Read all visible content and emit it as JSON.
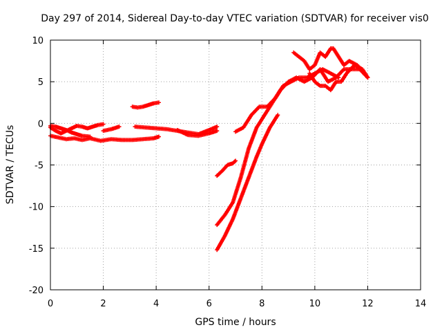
{
  "chart_data": {
    "type": "scatter",
    "title": "Day 297 of 2014, Sidereal Day-to-day VTEC variation (SDTVAR) for receiver vis0",
    "xlabel": "GPS time / hours",
    "ylabel": "SDTVAR / TECUs",
    "xlim": [
      0,
      14
    ],
    "ylim": [
      -20,
      10
    ],
    "x_ticks": [
      "0",
      "2",
      "4",
      "6",
      "8",
      "10",
      "12",
      "14"
    ],
    "y_ticks": [
      "10",
      "5",
      "0",
      "-5",
      "-10",
      "-15",
      "-20"
    ],
    "grid": true,
    "color": "#ff0000",
    "series": [
      {
        "x": [
          0.0,
          0.3,
          0.6,
          0.9,
          1.2,
          1.5,
          1.9,
          2.3,
          2.7,
          3.1,
          3.5,
          3.9,
          4.1
        ],
        "y": [
          -1.5,
          -1.7,
          -1.9,
          -1.8,
          -2.0,
          -1.8,
          -2.1,
          -1.9,
          -2.0,
          -2.0,
          -1.9,
          -1.8,
          -1.6
        ]
      },
      {
        "x": [
          0.0,
          0.2,
          0.4,
          0.6,
          0.8,
          1.0,
          1.2,
          1.4,
          1.6,
          1.8,
          2.0
        ],
        "y": [
          -0.5,
          -0.9,
          -1.2,
          -0.9,
          -0.6,
          -0.3,
          -0.4,
          -0.6,
          -0.4,
          -0.2,
          -0.1
        ]
      },
      {
        "x": [
          0.0,
          0.2,
          0.4,
          0.6,
          0.8,
          1.0,
          1.2,
          1.5
        ],
        "y": [
          -0.3,
          -0.4,
          -0.6,
          -0.8,
          -1.1,
          -1.3,
          -1.5,
          -1.6
        ]
      },
      {
        "x": [
          2.0,
          2.3,
          2.6
        ],
        "y": [
          -0.9,
          -0.7,
          -0.4
        ]
      },
      {
        "x": [
          3.1,
          3.3,
          3.5,
          3.7,
          3.9,
          4.1
        ],
        "y": [
          2.0,
          1.9,
          2.0,
          2.2,
          2.4,
          2.5
        ]
      },
      {
        "x": [
          3.2,
          3.6,
          4.0,
          4.4,
          4.8,
          5.2,
          5.6,
          6.0,
          6.3
        ],
        "y": [
          -0.4,
          -0.5,
          -0.6,
          -0.7,
          -0.9,
          -1.1,
          -1.3,
          -0.8,
          -0.4
        ]
      },
      {
        "x": [
          4.8,
          5.2,
          5.6,
          6.0,
          6.3
        ],
        "y": [
          -0.8,
          -1.4,
          -1.5,
          -1.2,
          -0.9
        ]
      },
      {
        "x": [
          6.3,
          6.5,
          6.7,
          6.9,
          7.0
        ],
        "y": [
          -6.3,
          -5.7,
          -5.0,
          -4.8,
          -4.5
        ]
      },
      {
        "x": [
          6.3,
          6.6,
          6.9,
          7.2,
          7.5,
          7.8,
          8.0,
          8.3,
          8.6
        ],
        "y": [
          -15.2,
          -13.5,
          -11.5,
          -9.0,
          -6.5,
          -4.0,
          -2.5,
          -0.5,
          1.0
        ]
      },
      {
        "x": [
          6.3,
          6.6,
          6.9,
          7.2,
          7.5,
          7.8,
          8.1,
          8.4,
          8.7,
          9.0,
          9.3,
          9.6,
          9.9,
          10.2,
          10.5,
          10.8,
          11.1,
          11.4,
          11.7,
          12.0
        ],
        "y": [
          -12.2,
          -11.0,
          -9.5,
          -6.5,
          -3.0,
          -0.5,
          1.0,
          2.5,
          4.0,
          5.0,
          5.5,
          5.0,
          5.5,
          6.5,
          5.0,
          5.5,
          6.5,
          6.5,
          6.5,
          5.5
        ]
      },
      {
        "x": [
          7.0,
          7.3,
          7.6,
          7.9,
          8.2,
          8.5,
          8.8,
          9.1,
          9.4,
          9.7,
          10.0,
          10.3,
          10.6,
          10.9
        ],
        "y": [
          -1.0,
          -0.5,
          1.0,
          2.0,
          2.0,
          3.0,
          4.5,
          5.0,
          5.5,
          5.5,
          6.0,
          6.5,
          6.0,
          5.5
        ]
      },
      {
        "x": [
          9.2,
          9.4,
          9.6,
          9.8,
          10.0,
          10.2,
          10.4,
          10.6,
          10.7,
          10.9,
          11.1,
          11.3,
          11.6,
          11.9,
          12.0
        ],
        "y": [
          8.5,
          8.0,
          7.5,
          6.5,
          7.0,
          8.5,
          8.0,
          9.0,
          9.0,
          8.0,
          7.0,
          7.5,
          7.0,
          6.0,
          5.5
        ]
      },
      {
        "x": [
          9.8,
          10.0,
          10.2,
          10.4,
          10.6,
          10.8,
          11.0,
          11.2,
          11.5,
          11.8,
          12.0
        ],
        "y": [
          6.0,
          5.0,
          4.5,
          4.5,
          4.0,
          5.0,
          5.0,
          6.0,
          7.0,
          6.5,
          5.5
        ]
      }
    ]
  }
}
